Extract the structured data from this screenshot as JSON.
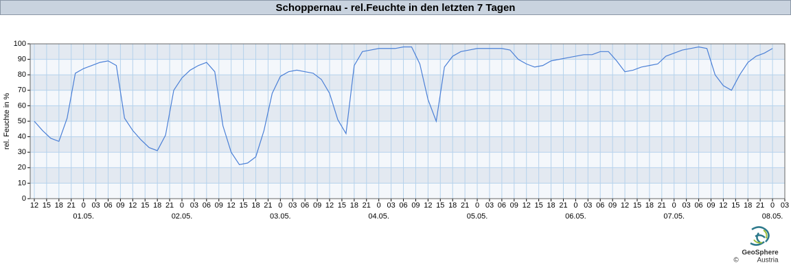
{
  "chart_data": {
    "type": "line",
    "title": "Schoppernau - rel.Feuchte in den letzten 7 Tagen",
    "y_label": "rel. Feuchte in %",
    "source": "GeoSphere",
    "source_sub": "Austria",
    "copyright": "©",
    "color": "#4a7fd6",
    "grid": true,
    "x": [
      "30.04. 12:00",
      "30.04. 14:00",
      "30.04. 16:00",
      "30.04. 18:00",
      "30.04. 20:00",
      "30.04. 22:00",
      "01.05. 00:00",
      "01.05. 02:00",
      "01.05. 04:00",
      "01.05. 06:00",
      "01.05. 08:00",
      "01.05. 10:00",
      "01.05. 12:00",
      "01.05. 14:00",
      "01.05. 16:00",
      "01.05. 18:00",
      "01.05. 20:00",
      "01.05. 22:00",
      "02.05. 00:00",
      "02.05. 02:00",
      "02.05. 04:00",
      "02.05. 06:00",
      "02.05. 08:00",
      "02.05. 10:00",
      "02.05. 12:00",
      "02.05. 14:00",
      "02.05. 16:00",
      "02.05. 18:00",
      "02.05. 20:00",
      "02.05. 22:00",
      "03.05. 00:00",
      "03.05. 02:00",
      "03.05. 04:00",
      "03.05. 06:00",
      "03.05. 08:00",
      "03.05. 10:00",
      "03.05. 12:00",
      "03.05. 14:00",
      "03.05. 16:00",
      "03.05. 18:00",
      "03.05. 20:00",
      "03.05. 22:00",
      "04.05. 00:00",
      "04.05. 02:00",
      "04.05. 04:00",
      "04.05. 06:00",
      "04.05. 08:00",
      "04.05. 10:00",
      "04.05. 12:00",
      "04.05. 14:00",
      "04.05. 16:00",
      "04.05. 18:00",
      "04.05. 20:00",
      "04.05. 22:00",
      "05.05. 00:00",
      "05.05. 02:00",
      "05.05. 04:00",
      "05.05. 06:00",
      "05.05. 08:00",
      "05.05. 10:00",
      "05.05. 12:00",
      "05.05. 14:00",
      "05.05. 16:00",
      "05.05. 18:00",
      "05.05. 20:00",
      "05.05. 22:00",
      "06.05. 00:00",
      "06.05. 02:00",
      "06.05. 04:00",
      "06.05. 06:00",
      "06.05. 08:00",
      "06.05. 10:00",
      "06.05. 12:00",
      "06.05. 14:00",
      "06.05. 16:00",
      "06.05. 18:00",
      "06.05. 20:00",
      "06.05. 22:00",
      "07.05. 00:00",
      "07.05. 02:00",
      "07.05. 04:00",
      "07.05. 06:00",
      "07.05. 08:00",
      "07.05. 10:00",
      "07.05. 12:00",
      "07.05. 14:00",
      "07.05. 16:00",
      "07.05. 18:00",
      "07.05. 20:00",
      "07.05. 22:00",
      "08.05. 00:00"
    ],
    "values": [
      50,
      44,
      39,
      37,
      52,
      81,
      84,
      86,
      88,
      89,
      86,
      52,
      44,
      38,
      33,
      31,
      41,
      70,
      78,
      83,
      86,
      88,
      82,
      47,
      30,
      22,
      23,
      27,
      44,
      68,
      79,
      82,
      83,
      82,
      81,
      77,
      68,
      51,
      42,
      86,
      95,
      96,
      97,
      97,
      97,
      98,
      98,
      87,
      64,
      50,
      85,
      92,
      95,
      96,
      97,
      97,
      97,
      97,
      96,
      90,
      87,
      85,
      86,
      89,
      90,
      91,
      92,
      93,
      93,
      95,
      95,
      89,
      82,
      83,
      85,
      86,
      87,
      92,
      94,
      96,
      97,
      98,
      97,
      80,
      73,
      70,
      80,
      88,
      92,
      94,
      97
    ],
    "xlim": [
      "30.04. 11:00",
      "08.05. 03:00"
    ],
    "ylim": [
      0,
      100
    ],
    "yticks": [
      0,
      10,
      20,
      30,
      40,
      50,
      60,
      70,
      80,
      90,
      100
    ],
    "xticks": [
      {
        "value": "30.04. 12:00",
        "label": "12"
      },
      {
        "value": "30.04. 15:00",
        "label": "15"
      },
      {
        "value": "30.04. 18:00",
        "label": "18"
      },
      {
        "value": "30.04. 21:00",
        "label": "21"
      },
      {
        "value": "01.05. 00:00",
        "label": "0"
      },
      {
        "value": "01.05. 03:00",
        "label": "03"
      },
      {
        "value": "01.05. 06:00",
        "label": "06"
      },
      {
        "value": "01.05. 09:00",
        "label": "09"
      },
      {
        "value": "01.05. 12:00",
        "label": "12"
      },
      {
        "value": "01.05. 15:00",
        "label": "15"
      },
      {
        "value": "01.05. 18:00",
        "label": "18"
      },
      {
        "value": "01.05. 21:00",
        "label": "21"
      },
      {
        "value": "02.05. 00:00",
        "label": "0"
      },
      {
        "value": "02.05. 03:00",
        "label": "03"
      },
      {
        "value": "02.05. 06:00",
        "label": "06"
      },
      {
        "value": "02.05. 09:00",
        "label": "09"
      },
      {
        "value": "02.05. 12:00",
        "label": "12"
      },
      {
        "value": "02.05. 15:00",
        "label": "15"
      },
      {
        "value": "02.05. 18:00",
        "label": "18"
      },
      {
        "value": "02.05. 21:00",
        "label": "21"
      },
      {
        "value": "03.05. 00:00",
        "label": "0"
      },
      {
        "value": "03.05. 03:00",
        "label": "03"
      },
      {
        "value": "03.05. 06:00",
        "label": "06"
      },
      {
        "value": "03.05. 09:00",
        "label": "09"
      },
      {
        "value": "03.05. 12:00",
        "label": "12"
      },
      {
        "value": "03.05. 15:00",
        "label": "15"
      },
      {
        "value": "03.05. 18:00",
        "label": "18"
      },
      {
        "value": "03.05. 21:00",
        "label": "21"
      },
      {
        "value": "04.05. 00:00",
        "label": "0"
      },
      {
        "value": "04.05. 03:00",
        "label": "03"
      },
      {
        "value": "04.05. 06:00",
        "label": "06"
      },
      {
        "value": "04.05. 09:00",
        "label": "09"
      },
      {
        "value": "04.05. 12:00",
        "label": "12"
      },
      {
        "value": "04.05. 15:00",
        "label": "15"
      },
      {
        "value": "04.05. 18:00",
        "label": "18"
      },
      {
        "value": "04.05. 21:00",
        "label": "21"
      },
      {
        "value": "05.05. 00:00",
        "label": "0"
      },
      {
        "value": "05.05. 03:00",
        "label": "03"
      },
      {
        "value": "05.05. 06:00",
        "label": "06"
      },
      {
        "value": "05.05. 09:00",
        "label": "09"
      },
      {
        "value": "05.05. 12:00",
        "label": "12"
      },
      {
        "value": "05.05. 15:00",
        "label": "15"
      },
      {
        "value": "05.05. 18:00",
        "label": "18"
      },
      {
        "value": "05.05. 21:00",
        "label": "21"
      },
      {
        "value": "06.05. 00:00",
        "label": "0"
      },
      {
        "value": "06.05. 03:00",
        "label": "03"
      },
      {
        "value": "06.05. 06:00",
        "label": "06"
      },
      {
        "value": "06.05. 09:00",
        "label": "09"
      },
      {
        "value": "06.05. 12:00",
        "label": "12"
      },
      {
        "value": "06.05. 15:00",
        "label": "15"
      },
      {
        "value": "06.05. 18:00",
        "label": "18"
      },
      {
        "value": "06.05. 21:00",
        "label": "21"
      },
      {
        "value": "07.05. 00:00",
        "label": "0"
      },
      {
        "value": "07.05. 03:00",
        "label": "03"
      },
      {
        "value": "07.05. 06:00",
        "label": "06"
      },
      {
        "value": "07.05. 09:00",
        "label": "09"
      },
      {
        "value": "07.05. 12:00",
        "label": "12"
      },
      {
        "value": "07.05. 15:00",
        "label": "15"
      },
      {
        "value": "07.05. 18:00",
        "label": "18"
      },
      {
        "value": "07.05. 21:00",
        "label": "21"
      },
      {
        "value": "08.05. 00:00",
        "label": "0"
      },
      {
        "value": "08.05. 03:00",
        "label": "03"
      }
    ],
    "date_labels": [
      {
        "value": "01.05. 00:00",
        "label": "01.05."
      },
      {
        "value": "02.05. 00:00",
        "label": "02.05."
      },
      {
        "value": "03.05. 00:00",
        "label": "03.05."
      },
      {
        "value": "04.05. 00:00",
        "label": "04.05."
      },
      {
        "value": "05.05. 00:00",
        "label": "05.05."
      },
      {
        "value": "06.05. 00:00",
        "label": "06.05."
      },
      {
        "value": "07.05. 00:00",
        "label": "07.05."
      },
      {
        "value": "08.05. 00:00",
        "label": "08.05."
      }
    ]
  }
}
